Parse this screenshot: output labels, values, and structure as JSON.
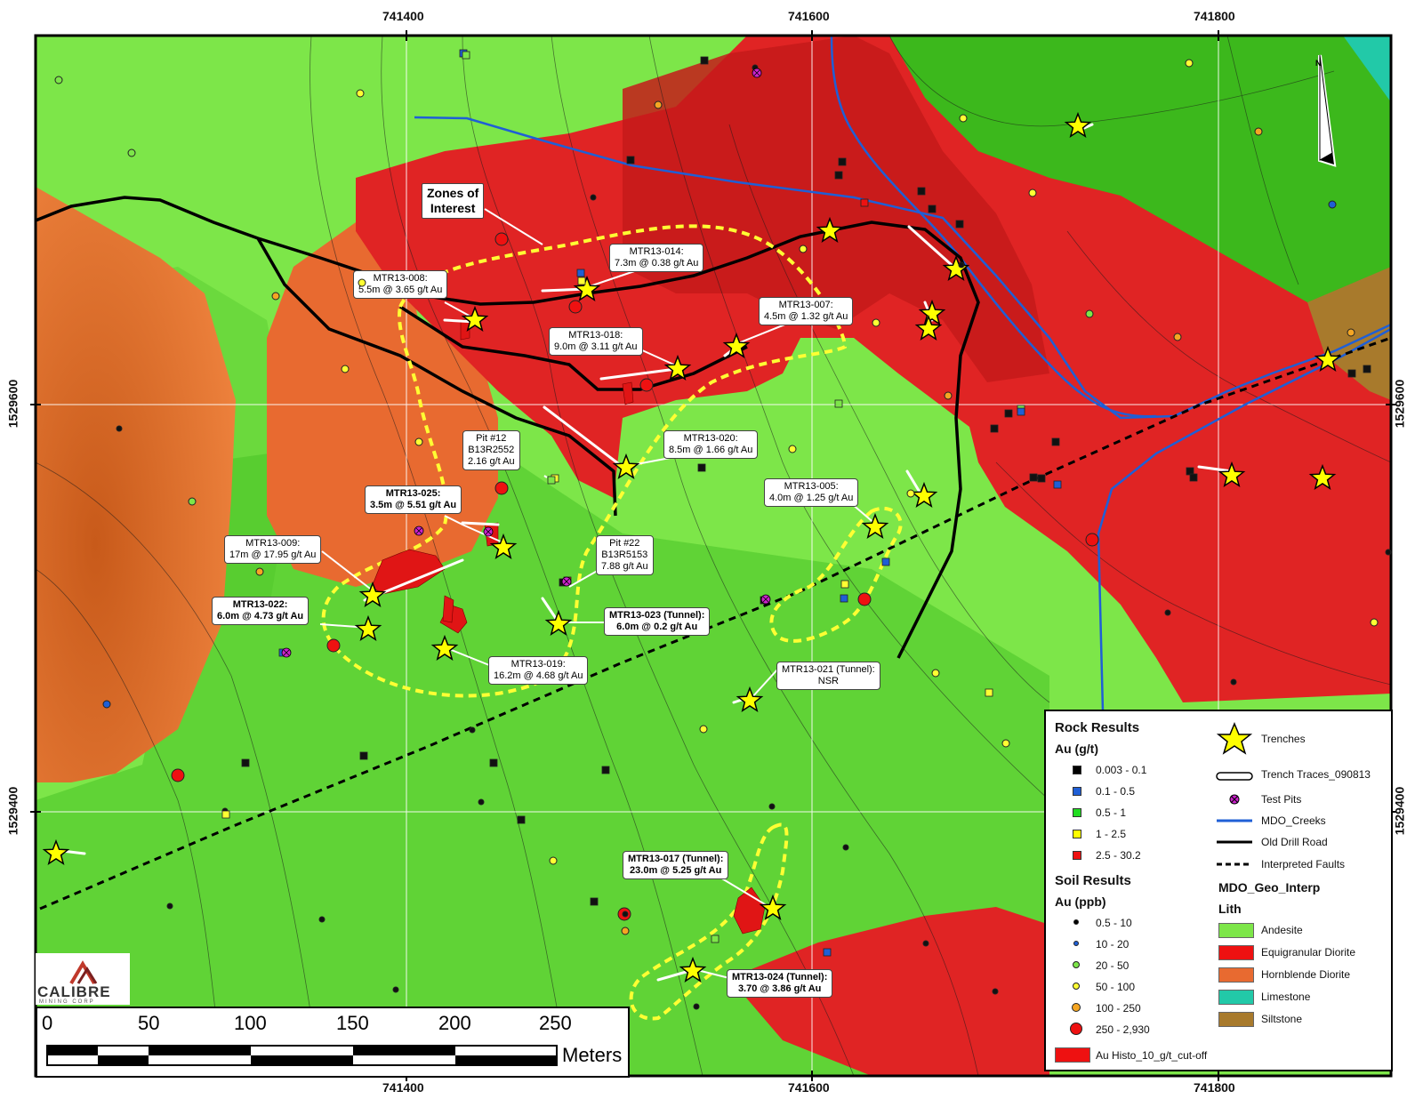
{
  "map": {
    "x_ticks": [
      "741400",
      "741600",
      "741800"
    ],
    "y_ticks": [
      "1529600",
      "1529400"
    ],
    "colors": {
      "andesite": "#7de649",
      "andesite_dark": "#3cb81c",
      "equigranular_diorite": "#e02424",
      "hornblende_diorite": "#e86a30",
      "limestone": "#22c9a8",
      "siltstone": "#a87a2c",
      "creek": "#1f5fd6",
      "zone": "#ffff33",
      "trench": "#ffff00"
    },
    "north_label": "N",
    "zones_label": [
      "Zones of",
      "Interest"
    ]
  },
  "callouts": [
    {
      "id": "mtr13-008",
      "lines": [
        "MTR13-008:",
        "5.5m @ 3.65 g/t Au"
      ],
      "bold": false
    },
    {
      "id": "mtr13-014",
      "lines": [
        "MTR13-014:",
        "7.3m @ 0.38 g/t Au"
      ],
      "bold": false
    },
    {
      "id": "mtr13-007",
      "lines": [
        "MTR13-007:",
        "4.5m @ 1.32 g/t Au"
      ],
      "bold": false
    },
    {
      "id": "mtr13-018",
      "lines": [
        "MTR13-018:",
        "9.0m @ 3.11 g/t Au"
      ],
      "bold": false
    },
    {
      "id": "pit-12",
      "lines": [
        "Pit #12",
        "B13R2552",
        "2.16 g/t Au"
      ],
      "bold": false
    },
    {
      "id": "mtr13-020",
      "lines": [
        "MTR13-020:",
        "8.5m @ 1.66 g/t Au"
      ],
      "bold": false
    },
    {
      "id": "mtr13-025",
      "lines": [
        "MTR13-025:",
        "3.5m @ 5.51 g/t Au"
      ],
      "bold": true
    },
    {
      "id": "mtr13-005",
      "lines": [
        "MTR13-005:",
        "4.0m @ 1.25 g/t Au"
      ],
      "bold": false
    },
    {
      "id": "mtr13-009",
      "lines": [
        "MTR13-009:",
        "17m @ 17.95 g/t Au"
      ],
      "bold": false
    },
    {
      "id": "pit-22",
      "lines": [
        "Pit #22",
        "B13R5153",
        "7.88 g/t Au"
      ],
      "bold": false
    },
    {
      "id": "mtr13-022",
      "lines": [
        "MTR13-022:",
        "6.0m @ 4.73 g/t Au"
      ],
      "bold": true
    },
    {
      "id": "mtr13-023",
      "lines": [
        "MTR13-023 (Tunnel):",
        "6.0m @ 0.2 g/t Au"
      ],
      "bold": true
    },
    {
      "id": "mtr13-019",
      "lines": [
        "MTR13-019:",
        "16.2m @ 4.68 g/t Au"
      ],
      "bold": false
    },
    {
      "id": "mtr13-021",
      "lines": [
        "MTR13-021 (Tunnel):",
        "NSR"
      ],
      "bold": false
    },
    {
      "id": "mtr13-017",
      "lines": [
        "MTR13-017 (Tunnel):",
        "23.0m @ 5.25 g/t Au"
      ],
      "bold": true
    },
    {
      "id": "mtr13-024",
      "lines": [
        "MTR13-024 (Tunnel):",
        "3.70 @ 3.86 g/t Au"
      ],
      "bold": true
    }
  ],
  "legend": {
    "rock_title": "Rock Results",
    "rock_unit": "Au (g/t)",
    "rock_items": [
      {
        "label": "0.003 - 0.1",
        "color": "#000000"
      },
      {
        "label": "0.1 - 0.5",
        "color": "#1f5fd6"
      },
      {
        "label": "0.5 - 1",
        "color": "#22dd22"
      },
      {
        "label": "1 - 2.5",
        "color": "#ffff00"
      },
      {
        "label": "2.5 - 30.2",
        "color": "#ee1111"
      }
    ],
    "soil_title": "Soil Results",
    "soil_unit": "Au (ppb)",
    "soil_items": [
      {
        "label": "0.5 - 10",
        "color": "#000000"
      },
      {
        "label": "10 - 20",
        "color": "#1f5fd6"
      },
      {
        "label": "20 - 50",
        "color": "#7de649"
      },
      {
        "label": "50 - 100",
        "color": "#ffff33"
      },
      {
        "label": "100 - 250",
        "color": "#f5a623"
      },
      {
        "label": "250 - 2,930",
        "color": "#ee1111"
      }
    ],
    "au_histo": "Au Histo_10_g/t_cut-off",
    "symbols": [
      {
        "label": "Trenches",
        "icon": "star-icon"
      },
      {
        "label": "Trench Traces_090813",
        "icon": "trench-trace-icon"
      },
      {
        "label": "Test Pits",
        "icon": "test-pit-icon"
      },
      {
        "label": "MDO_Creeks",
        "icon": "creek-line-icon"
      },
      {
        "label": "Old Drill Road",
        "icon": "road-line-icon"
      },
      {
        "label": "Interpreted Faults",
        "icon": "fault-line-icon"
      }
    ],
    "geo_title": "MDO_Geo_Interp",
    "lith_title": "Lith",
    "lith_items": [
      {
        "label": "Andesite",
        "color": "#7de649"
      },
      {
        "label": "Equigranular Diorite",
        "color": "#ee1111"
      },
      {
        "label": "Hornblende Diorite",
        "color": "#e86a30"
      },
      {
        "label": "Limestone",
        "color": "#22c9a8"
      },
      {
        "label": "Siltstone",
        "color": "#a87a2c"
      }
    ]
  },
  "scale": {
    "labels": [
      "0",
      "50",
      "100",
      "150",
      "200",
      "250"
    ],
    "unit": "Meters"
  },
  "logo": {
    "name": "CALIBRE",
    "sub": "MINING CORP"
  }
}
